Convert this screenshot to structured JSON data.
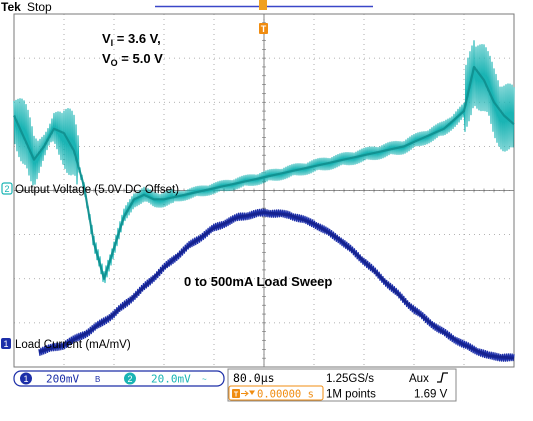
{
  "scope": {
    "brand": "Tek",
    "acq_state": "Stop",
    "trigger_marker": "T"
  },
  "annotations": {
    "vin_sym": "V",
    "vin_sub": "I",
    "vin_val": " = 3.6 V,",
    "vout_sym": "V",
    "vout_sub": "O",
    "vout_val": " = 5.0 V",
    "sweep": "0 to 500mA Load Sweep"
  },
  "channels": {
    "ch2": {
      "number": "2",
      "label": "Output Voltage (5.0V DC Offset)",
      "scale": "20.0mV",
      "coupling": "ac-coupling-icon",
      "color": "#1ab4b4"
    },
    "ch1": {
      "number": "1",
      "label": "Load Current (mA/mV)",
      "scale": "200mV",
      "coupling": "bandwidth-limit-icon",
      "color": "#1c2ea8"
    }
  },
  "timebase": {
    "time_div": "80.0µs",
    "sample_rate": "1.25GS/s",
    "trig_source": "Aux",
    "trig_edge_icon": "rising-edge-icon",
    "trig_position": "0.00000 s",
    "record_length": "1M points",
    "trig_level": "1.69 V"
  },
  "chart_data": {
    "type": "line",
    "grid": true,
    "divisions": {
      "x": 10,
      "y": 8
    },
    "series": [
      {
        "name": "Output Voltage (5.0V DC Offset)",
        "x": [
          0,
          0.2,
          0.4,
          0.6,
          0.8,
          1.0,
          1.2,
          1.4,
          1.6,
          1.8,
          2.0,
          2.2,
          2.4,
          2.6,
          2.8,
          3.0,
          3.4,
          3.8,
          4.2,
          4.6,
          5.0,
          5.4,
          5.8,
          6.2,
          6.6,
          7.0,
          7.4,
          7.8,
          8.2,
          8.6,
          9.0,
          9.2,
          9.4,
          9.6,
          9.8,
          10
        ],
        "y": [
          1.7,
          1.2,
          0.7,
          1.0,
          1.4,
          1.3,
          0.9,
          0.1,
          -1.2,
          -2.0,
          -1.3,
          -0.6,
          -0.2,
          -0.1,
          -0.2,
          -0.2,
          -0.1,
          0.0,
          0.1,
          0.2,
          0.3,
          0.4,
          0.5,
          0.6,
          0.7,
          0.8,
          0.9,
          1.0,
          1.2,
          1.4,
          1.8,
          2.8,
          2.5,
          2.0,
          1.7,
          1.5
        ]
      },
      {
        "name": "Load Current (mA/mV)",
        "x": [
          0.5,
          1.0,
          1.5,
          2.0,
          2.5,
          3.0,
          3.5,
          4.0,
          4.5,
          5.0,
          5.5,
          6.0,
          6.5,
          7.0,
          7.5,
          8.0,
          8.5,
          9.0,
          9.5,
          10
        ],
        "y": [
          -3.65,
          -3.5,
          -3.2,
          -2.8,
          -2.3,
          -1.75,
          -1.25,
          -0.85,
          -0.6,
          -0.5,
          -0.55,
          -0.75,
          -1.1,
          -1.6,
          -2.15,
          -2.7,
          -3.15,
          -3.5,
          -3.75,
          -3.8
        ]
      }
    ]
  }
}
